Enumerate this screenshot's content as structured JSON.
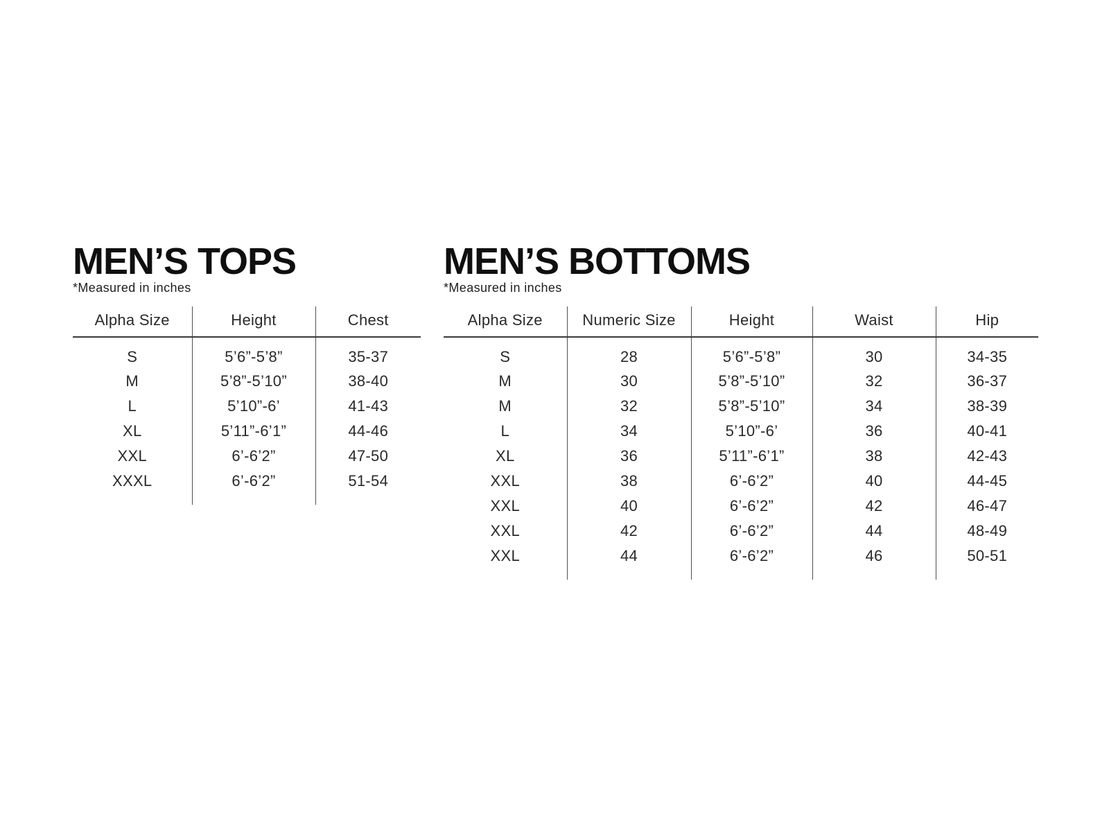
{
  "colors": {
    "background": "#ffffff",
    "title_text": "#0f0f0f",
    "body_text": "#2a2a2a",
    "header_rule": "#3a3a3a",
    "column_divider": "#4f4f4f"
  },
  "tops": {
    "title": "MEN’S TOPS",
    "note": "*Measured in inches",
    "columns": [
      "Alpha Size",
      "Height",
      "Chest"
    ],
    "rows": [
      [
        "S",
        "5’6”-5’8”",
        "35-37"
      ],
      [
        "M",
        "5’8”-5’10”",
        "38-40"
      ],
      [
        "L",
        "5’10”-6’",
        "41-43"
      ],
      [
        "XL",
        "5’11”-6’1”",
        "44-46"
      ],
      [
        "XXL",
        "6’-6’2”",
        "47-50"
      ],
      [
        "XXXL",
        "6’-6’2”",
        "51-54"
      ]
    ]
  },
  "bottoms": {
    "title": "MEN’S BOTTOMS",
    "note": "*Measured in inches",
    "columns": [
      "Alpha Size",
      "Numeric Size",
      "Height",
      "Waist",
      "Hip"
    ],
    "rows": [
      [
        "S",
        "28",
        "5’6”-5’8”",
        "30",
        "34-35"
      ],
      [
        "M",
        "30",
        "5’8”-5’10”",
        "32",
        "36-37"
      ],
      [
        "M",
        "32",
        "5’8”-5’10”",
        "34",
        "38-39"
      ],
      [
        "L",
        "34",
        "5’10”-6’",
        "36",
        "40-41"
      ],
      [
        "XL",
        "36",
        "5’11”-6’1”",
        "38",
        "42-43"
      ],
      [
        "XXL",
        "38",
        "6’-6’2”",
        "40",
        "44-45"
      ],
      [
        "XXL",
        "40",
        "6’-6’2”",
        "42",
        "46-47"
      ],
      [
        "XXL",
        "42",
        "6’-6’2”",
        "44",
        "48-49"
      ],
      [
        "XXL",
        "44",
        "6’-6’2”",
        "46",
        "50-51"
      ]
    ]
  }
}
